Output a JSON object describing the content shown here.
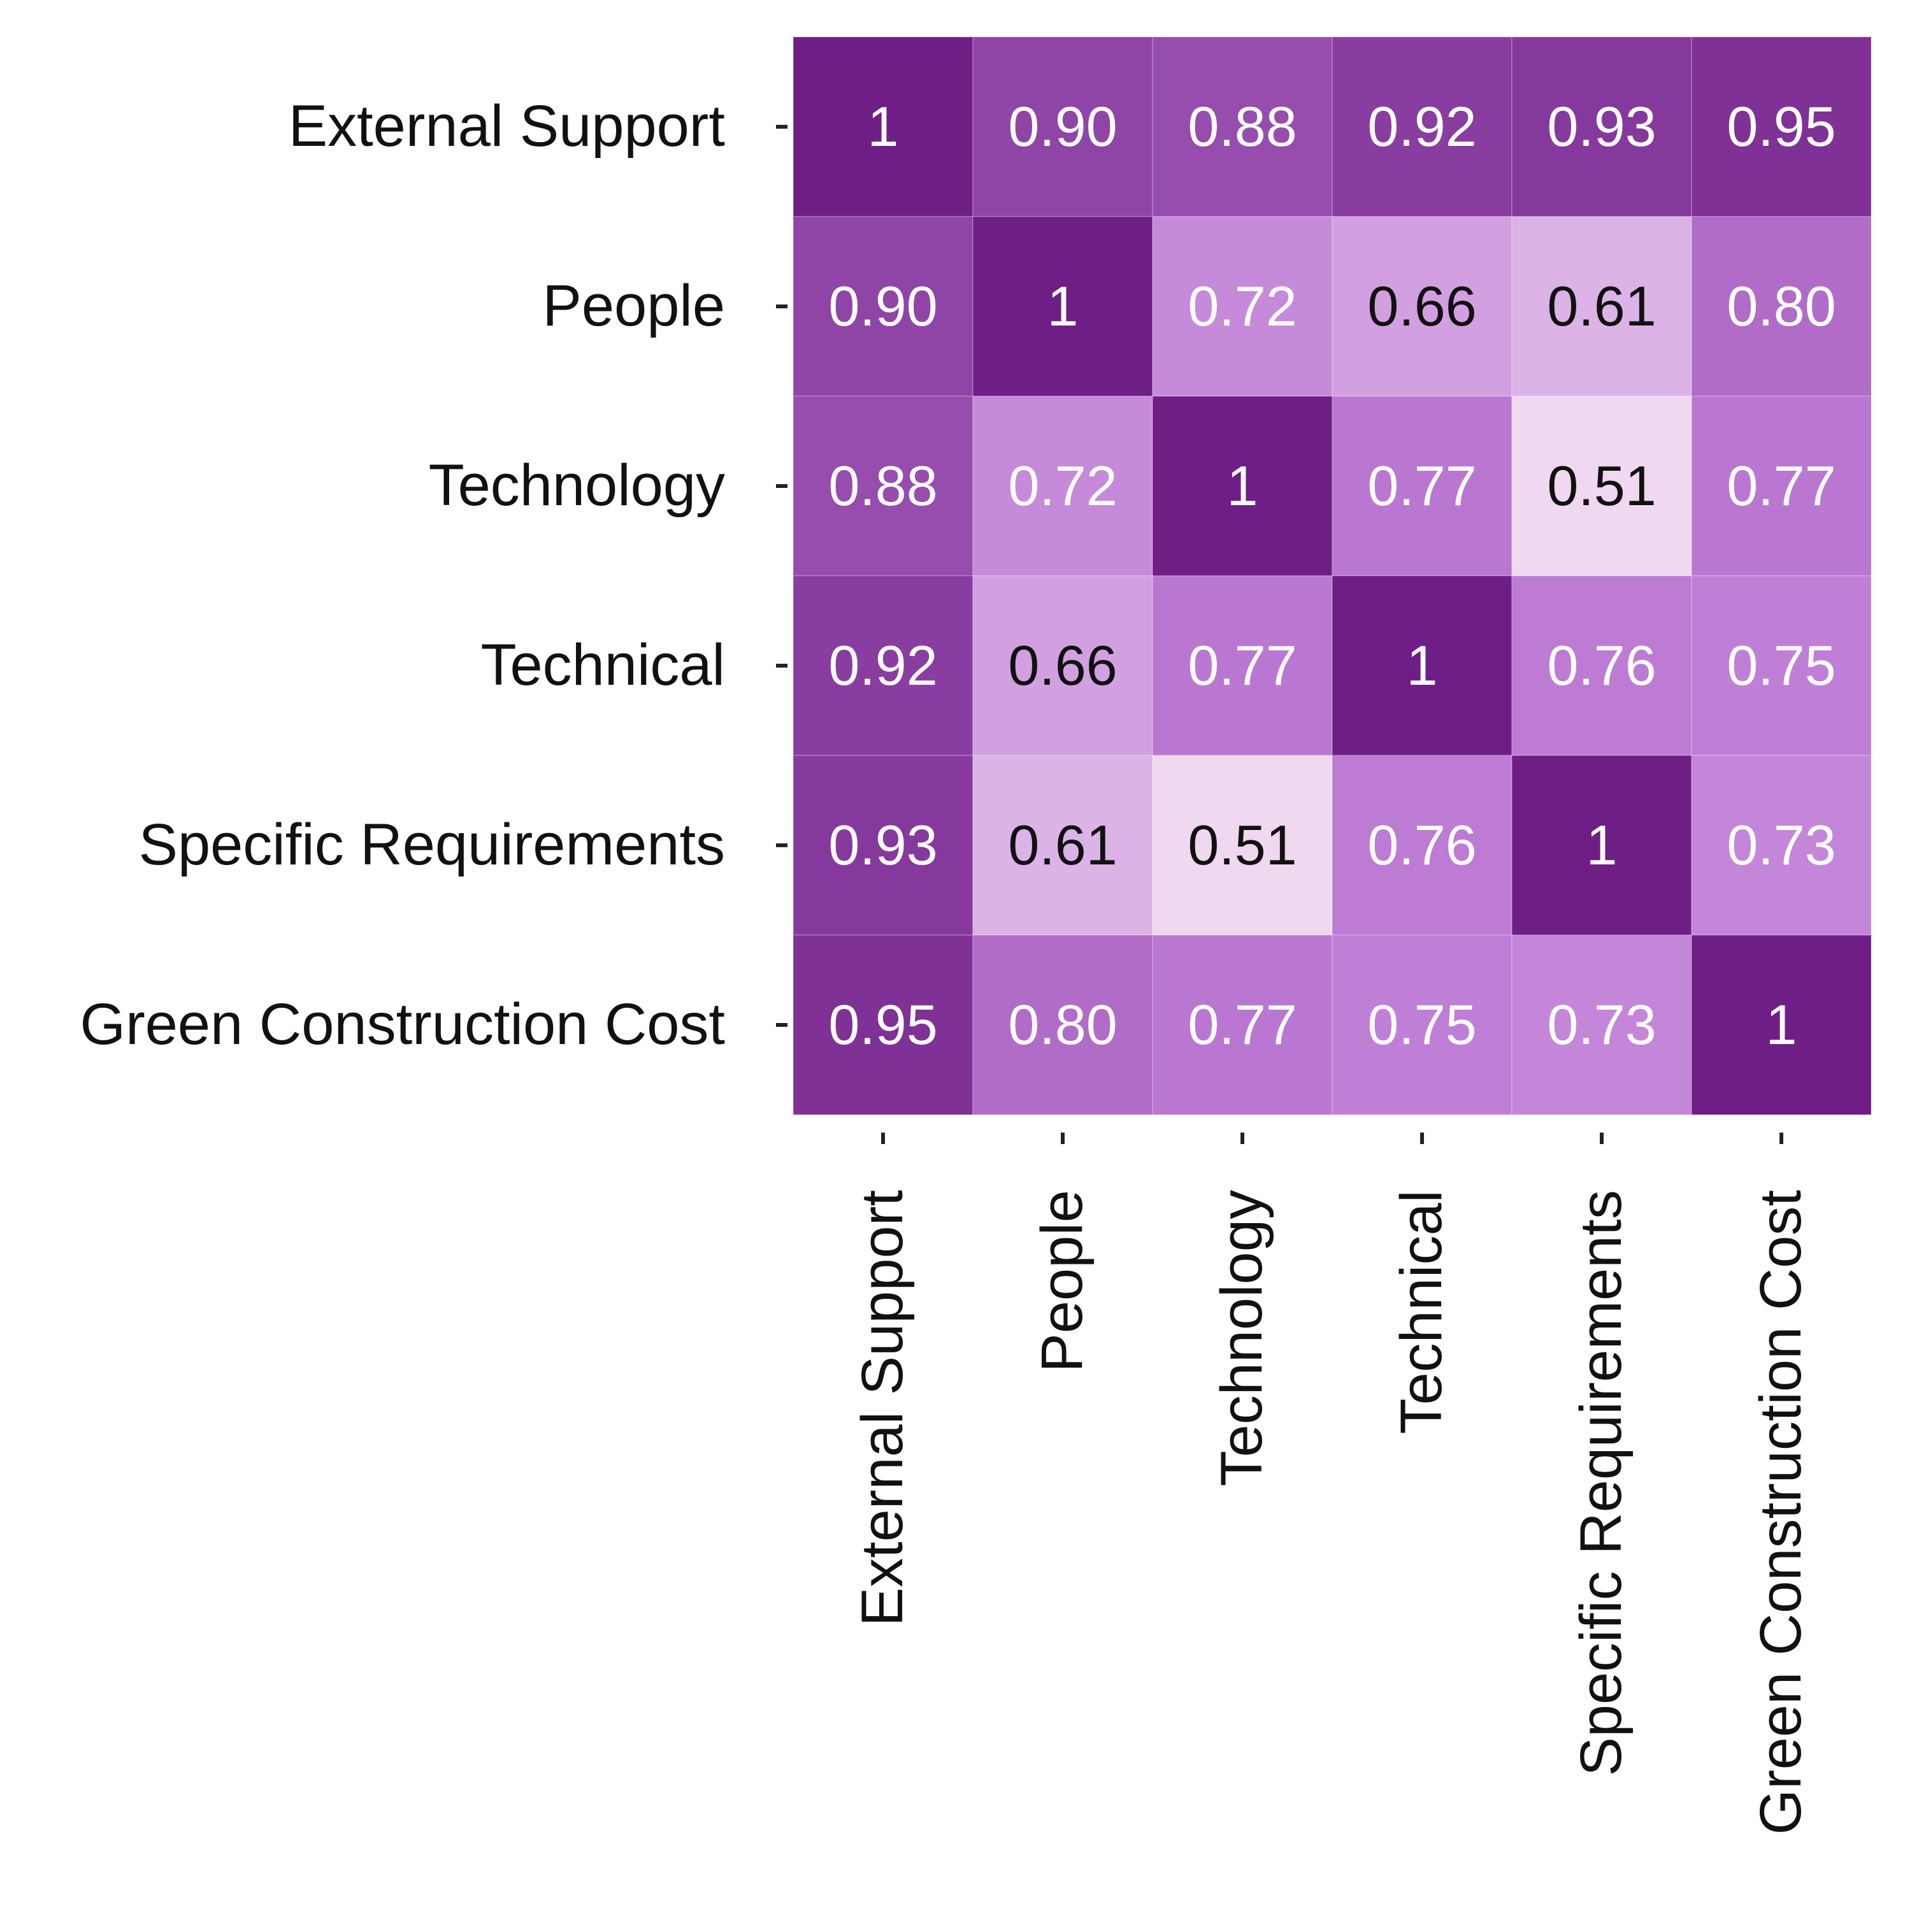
{
  "chart_data": {
    "type": "heatmap",
    "title": "",
    "rows": [
      "External Support",
      "People",
      "Technology",
      "Technical",
      "Specific Requirements",
      "Green Construction Cost"
    ],
    "columns": [
      "External Support",
      "People",
      "Technology",
      "Technical",
      "Specific Requirements",
      "Green Construction Cost"
    ],
    "values": [
      [
        1,
        0.9,
        0.88,
        0.92,
        0.93,
        0.95
      ],
      [
        0.9,
        1,
        0.72,
        0.66,
        0.61,
        0.8
      ],
      [
        0.88,
        0.72,
        1,
        0.77,
        0.51,
        0.77
      ],
      [
        0.92,
        0.66,
        0.77,
        1,
        0.76,
        0.75
      ],
      [
        0.93,
        0.61,
        0.51,
        0.76,
        1,
        0.73
      ],
      [
        0.95,
        0.8,
        0.77,
        0.75,
        0.73,
        1
      ]
    ],
    "value_labels": [
      [
        "1",
        "0.90",
        "0.88",
        "0.92",
        "0.93",
        "0.95"
      ],
      [
        "0.90",
        "1",
        "0.72",
        "0.66",
        "0.61",
        "0.80"
      ],
      [
        "0.88",
        "0.72",
        "1",
        "0.77",
        "0.51",
        "0.77"
      ],
      [
        "0.92",
        "0.66",
        "0.77",
        "1",
        "0.76",
        "0.75"
      ],
      [
        "0.93",
        "0.61",
        "0.51",
        "0.76",
        "1",
        "0.73"
      ],
      [
        "0.95",
        "0.80",
        "0.77",
        "0.75",
        "0.73",
        "1"
      ]
    ],
    "color_scale": {
      "low_color": "#f1dcf1",
      "mid_color": "#c07fd7",
      "high_color": "#6f1e86",
      "dark_text": "#111111",
      "light_text": "#ffffff"
    },
    "grid": false,
    "colorbar": false
  }
}
